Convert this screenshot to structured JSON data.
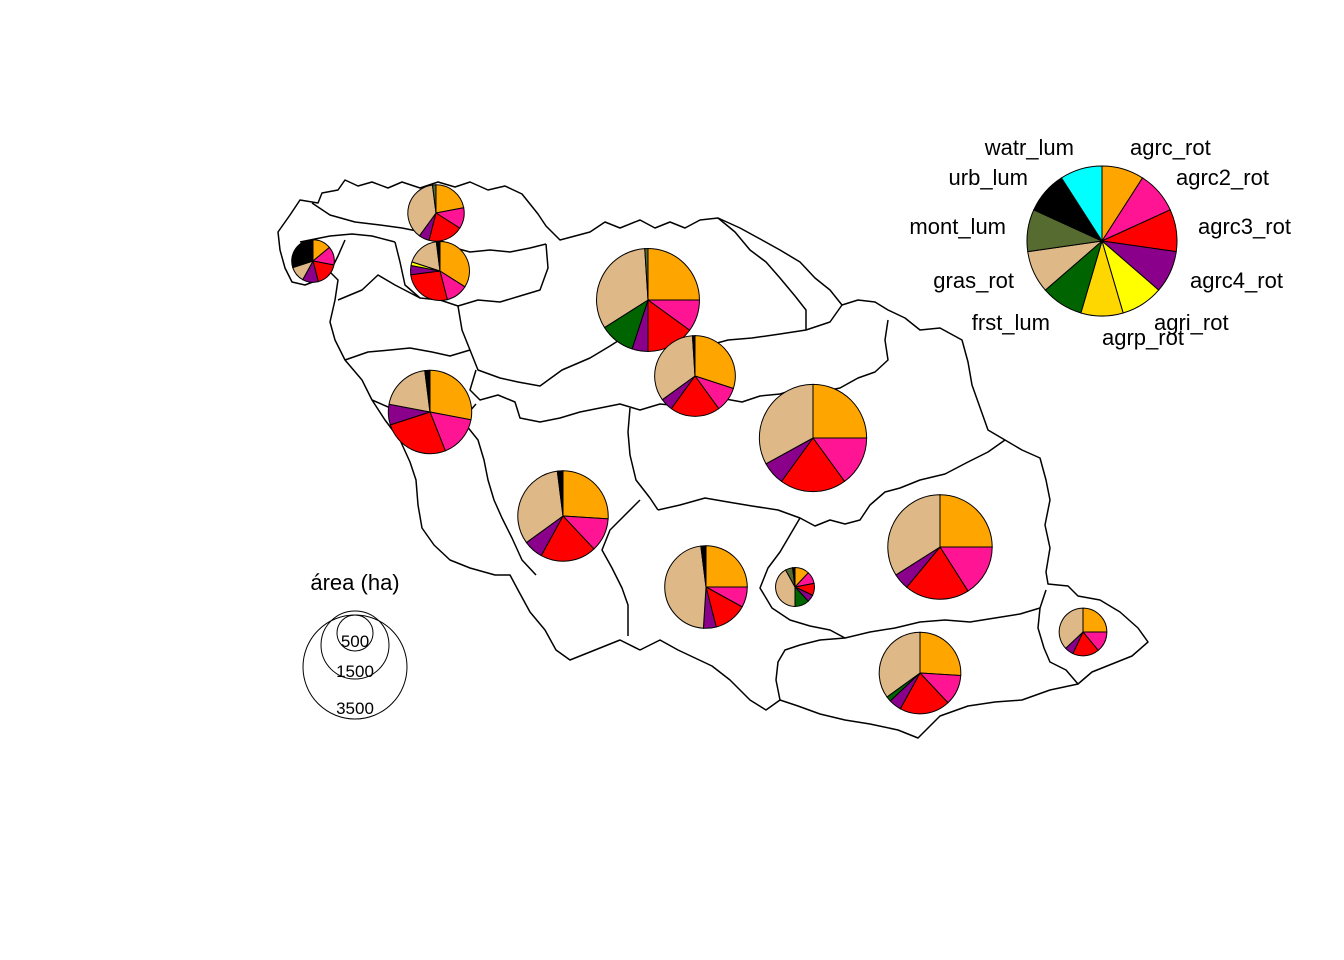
{
  "legend": {
    "categories": [
      {
        "key": "agrc_rot",
        "label": "agrc_rot",
        "color": "#FFA500"
      },
      {
        "key": "agrc2_rot",
        "label": "agrc2_rot",
        "color": "#FF1493"
      },
      {
        "key": "agrc3_rot",
        "label": "agrc3_rot",
        "color": "#FF0000"
      },
      {
        "key": "agrc4_rot",
        "label": "agrc4_rot",
        "color": "#8B008B"
      },
      {
        "key": "agri_rot",
        "label": "agri_rot",
        "color": "#FFFF00"
      },
      {
        "key": "agrp_rot",
        "label": "agrp_rot",
        "color": "#FFD700"
      },
      {
        "key": "frst_lum",
        "label": "frst_lum",
        "color": "#006400"
      },
      {
        "key": "gras_rot",
        "label": "gras_rot",
        "color": "#DEB887"
      },
      {
        "key": "mont_lum",
        "label": "mont_lum",
        "color": "#556B2F"
      },
      {
        "key": "urb_lum",
        "label": "urb_lum",
        "color": "#000000"
      },
      {
        "key": "watr_lum",
        "label": "watr_lum",
        "color": "#00FFFF"
      }
    ]
  },
  "size_legend": {
    "title": "área (ha)",
    "values": [
      500,
      1500,
      3500
    ]
  },
  "subbasins": [
    {
      "id": "sb01",
      "area_ha": 1050,
      "shares": [
        0.22,
        0.12,
        0.2,
        0.06,
        0.0,
        0.0,
        0.0,
        0.38,
        0.02,
        0.0,
        0.0
      ]
    },
    {
      "id": "sb02",
      "area_ha": 1150,
      "shares": [
        0.34,
        0.12,
        0.27,
        0.05,
        0.02,
        0.0,
        0.0,
        0.18,
        0.0,
        0.02,
        0.0
      ]
    },
    {
      "id": "sb03",
      "area_ha": 600,
      "shares": [
        0.14,
        0.14,
        0.18,
        0.12,
        0.0,
        0.0,
        0.0,
        0.12,
        0.0,
        0.3,
        0.0
      ]
    },
    {
      "id": "sb04",
      "area_ha": 3500,
      "shares": [
        0.25,
        0.1,
        0.15,
        0.05,
        0.0,
        0.0,
        0.11,
        0.33,
        0.01,
        0.0,
        0.0
      ]
    },
    {
      "id": "sb05",
      "area_ha": 2150,
      "shares": [
        0.3,
        0.1,
        0.2,
        0.05,
        0.0,
        0.0,
        0.0,
        0.34,
        0.0,
        0.01,
        0.0
      ]
    },
    {
      "id": "sb06",
      "area_ha": 2300,
      "shares": [
        0.28,
        0.16,
        0.26,
        0.08,
        0.0,
        0.0,
        0.0,
        0.2,
        0.0,
        0.02,
        0.0
      ]
    },
    {
      "id": "sb07",
      "area_ha": 3800,
      "shares": [
        0.25,
        0.15,
        0.2,
        0.07,
        0.0,
        0.0,
        0.0,
        0.33,
        0.0,
        0.0,
        0.0
      ]
    },
    {
      "id": "sb08",
      "area_ha": 2700,
      "shares": [
        0.26,
        0.12,
        0.2,
        0.07,
        0.0,
        0.0,
        0.0,
        0.33,
        0.0,
        0.02,
        0.0
      ]
    },
    {
      "id": "sb09",
      "area_ha": 2250,
      "shares": [
        0.25,
        0.08,
        0.13,
        0.05,
        0.0,
        0.0,
        0.0,
        0.47,
        0.0,
        0.02,
        0.0
      ]
    },
    {
      "id": "sb10",
      "area_ha": 500,
      "shares": [
        0.12,
        0.1,
        0.1,
        0.06,
        0.0,
        0.0,
        0.12,
        0.42,
        0.06,
        0.02,
        0.0
      ]
    },
    {
      "id": "sb11",
      "area_ha": 3600,
      "shares": [
        0.25,
        0.16,
        0.2,
        0.05,
        0.0,
        0.0,
        0.0,
        0.34,
        0.0,
        0.0,
        0.0
      ]
    },
    {
      "id": "sb12",
      "area_ha": 2200,
      "shares": [
        0.26,
        0.12,
        0.2,
        0.05,
        0.0,
        0.0,
        0.02,
        0.35,
        0.0,
        0.0,
        0.0
      ]
    },
    {
      "id": "sb13",
      "area_ha": 750,
      "shares": [
        0.25,
        0.14,
        0.18,
        0.06,
        0.0,
        0.0,
        0.0,
        0.37,
        0.0,
        0.0,
        0.0
      ]
    }
  ]
}
